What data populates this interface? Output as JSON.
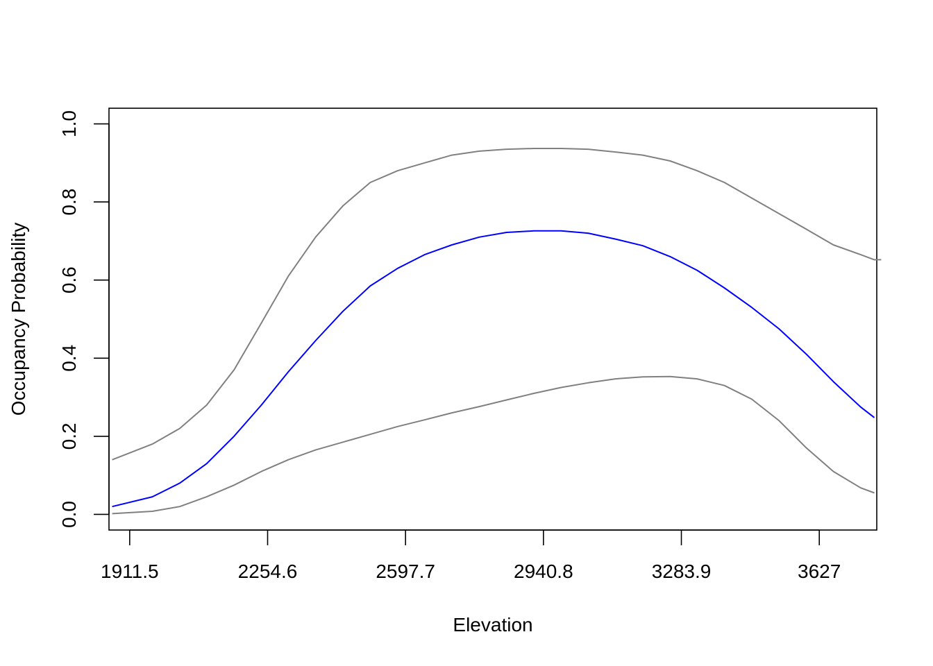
{
  "chart_data": {
    "type": "line",
    "title": "",
    "xlabel": "Elevation",
    "ylabel": "Occupancy Probability",
    "xlim": [
      1860.0,
      3770.0
    ],
    "ylim": [
      -0.04,
      1.04
    ],
    "x_ticks": [
      {
        "value": 1911.5,
        "label": "1911.5"
      },
      {
        "value": 2254.6,
        "label": "2254.6"
      },
      {
        "value": 2597.7,
        "label": "2597.7"
      },
      {
        "value": 2940.8,
        "label": "2940.8"
      },
      {
        "value": 3283.9,
        "label": "3283.9"
      },
      {
        "value": 3627.0,
        "label": "3627"
      }
    ],
    "y_ticks": [
      {
        "value": 0.0,
        "label": "0.0"
      },
      {
        "value": 0.2,
        "label": "0.2"
      },
      {
        "value": 0.4,
        "label": "0.4"
      },
      {
        "value": 0.6,
        "label": "0.6"
      },
      {
        "value": 0.8,
        "label": "0.8"
      },
      {
        "value": 1.0,
        "label": "1.0"
      }
    ],
    "grid": false,
    "series": [
      {
        "role": "upper",
        "color": "#808080",
        "points": [
          [
            1868,
            0.14
          ],
          [
            1968,
            0.18
          ],
          [
            2036,
            0.22
          ],
          [
            2103,
            0.28
          ],
          [
            2171,
            0.37
          ],
          [
            2239,
            0.49
          ],
          [
            2306,
            0.61
          ],
          [
            2374,
            0.71
          ],
          [
            2442,
            0.79
          ],
          [
            2510,
            0.85
          ],
          [
            2578,
            0.88
          ],
          [
            2645,
            0.9
          ],
          [
            2713,
            0.92
          ],
          [
            2781,
            0.93
          ],
          [
            2849,
            0.935
          ],
          [
            2917,
            0.937
          ],
          [
            2985,
            0.937
          ],
          [
            3052,
            0.935
          ],
          [
            3120,
            0.928
          ],
          [
            3188,
            0.92
          ],
          [
            3256,
            0.905
          ],
          [
            3323,
            0.88
          ],
          [
            3391,
            0.85
          ],
          [
            3459,
            0.81
          ],
          [
            3527,
            0.77
          ],
          [
            3595,
            0.73
          ],
          [
            3662,
            0.69
          ],
          [
            3730,
            0.665
          ],
          [
            3764,
            0.652
          ],
          [
            3781,
            0.652
          ]
        ]
      },
      {
        "role": "estimate",
        "color": "#0000ff",
        "points": [
          [
            1868,
            0.02
          ],
          [
            1968,
            0.045
          ],
          [
            2036,
            0.08
          ],
          [
            2103,
            0.13
          ],
          [
            2171,
            0.2
          ],
          [
            2239,
            0.28
          ],
          [
            2306,
            0.365
          ],
          [
            2374,
            0.445
          ],
          [
            2442,
            0.52
          ],
          [
            2510,
            0.585
          ],
          [
            2578,
            0.63
          ],
          [
            2645,
            0.665
          ],
          [
            2713,
            0.69
          ],
          [
            2781,
            0.71
          ],
          [
            2849,
            0.722
          ],
          [
            2917,
            0.726
          ],
          [
            2985,
            0.726
          ],
          [
            3052,
            0.72
          ],
          [
            3120,
            0.705
          ],
          [
            3188,
            0.688
          ],
          [
            3256,
            0.66
          ],
          [
            3323,
            0.625
          ],
          [
            3391,
            0.58
          ],
          [
            3459,
            0.53
          ],
          [
            3527,
            0.475
          ],
          [
            3595,
            0.41
          ],
          [
            3662,
            0.34
          ],
          [
            3730,
            0.275
          ],
          [
            3764,
            0.248
          ]
        ]
      },
      {
        "role": "lower",
        "color": "#808080",
        "points": [
          [
            1868,
            0.002
          ],
          [
            1968,
            0.008
          ],
          [
            2036,
            0.02
          ],
          [
            2103,
            0.045
          ],
          [
            2171,
            0.075
          ],
          [
            2239,
            0.11
          ],
          [
            2306,
            0.14
          ],
          [
            2374,
            0.165
          ],
          [
            2442,
            0.185
          ],
          [
            2510,
            0.205
          ],
          [
            2578,
            0.225
          ],
          [
            2645,
            0.242
          ],
          [
            2713,
            0.26
          ],
          [
            2781,
            0.276
          ],
          [
            2849,
            0.293
          ],
          [
            2917,
            0.31
          ],
          [
            2985,
            0.325
          ],
          [
            3052,
            0.337
          ],
          [
            3120,
            0.347
          ],
          [
            3188,
            0.352
          ],
          [
            3256,
            0.353
          ],
          [
            3323,
            0.347
          ],
          [
            3391,
            0.33
          ],
          [
            3459,
            0.295
          ],
          [
            3527,
            0.24
          ],
          [
            3595,
            0.17
          ],
          [
            3662,
            0.11
          ],
          [
            3730,
            0.068
          ],
          [
            3764,
            0.055
          ]
        ]
      }
    ]
  }
}
